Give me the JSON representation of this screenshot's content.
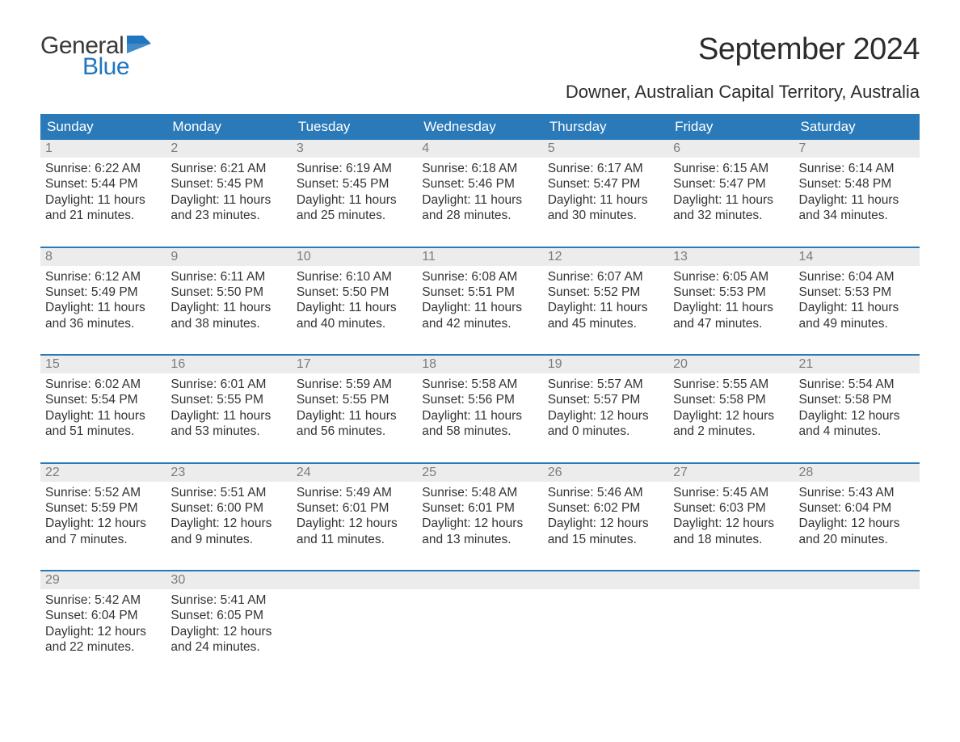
{
  "logo": {
    "text1": "General",
    "text2": "Blue",
    "color1": "#3a3a3a",
    "color2": "#2176c0",
    "flag_color": "#2176c0"
  },
  "title": "September 2024",
  "location": "Downer, Australian Capital Territory, Australia",
  "colors": {
    "header_bg": "#2a7ab9",
    "header_fg": "#ffffff",
    "daynum_bg": "#ececec",
    "daynum_fg": "#7c7c7c",
    "rule": "#2a7ab9",
    "body_text": "#333333",
    "background": "#ffffff"
  },
  "fonts": {
    "title_size": 38,
    "location_size": 22,
    "weekday_size": 17,
    "daynum_size": 16,
    "body_size": 15.5
  },
  "weekdays": [
    "Sunday",
    "Monday",
    "Tuesday",
    "Wednesday",
    "Thursday",
    "Friday",
    "Saturday"
  ],
  "weeks": [
    [
      {
        "n": "1",
        "sr": "Sunrise: 6:22 AM",
        "ss": "Sunset: 5:44 PM",
        "d1": "Daylight: 11 hours",
        "d2": "and 21 minutes."
      },
      {
        "n": "2",
        "sr": "Sunrise: 6:21 AM",
        "ss": "Sunset: 5:45 PM",
        "d1": "Daylight: 11 hours",
        "d2": "and 23 minutes."
      },
      {
        "n": "3",
        "sr": "Sunrise: 6:19 AM",
        "ss": "Sunset: 5:45 PM",
        "d1": "Daylight: 11 hours",
        "d2": "and 25 minutes."
      },
      {
        "n": "4",
        "sr": "Sunrise: 6:18 AM",
        "ss": "Sunset: 5:46 PM",
        "d1": "Daylight: 11 hours",
        "d2": "and 28 minutes."
      },
      {
        "n": "5",
        "sr": "Sunrise: 6:17 AM",
        "ss": "Sunset: 5:47 PM",
        "d1": "Daylight: 11 hours",
        "d2": "and 30 minutes."
      },
      {
        "n": "6",
        "sr": "Sunrise: 6:15 AM",
        "ss": "Sunset: 5:47 PM",
        "d1": "Daylight: 11 hours",
        "d2": "and 32 minutes."
      },
      {
        "n": "7",
        "sr": "Sunrise: 6:14 AM",
        "ss": "Sunset: 5:48 PM",
        "d1": "Daylight: 11 hours",
        "d2": "and 34 minutes."
      }
    ],
    [
      {
        "n": "8",
        "sr": "Sunrise: 6:12 AM",
        "ss": "Sunset: 5:49 PM",
        "d1": "Daylight: 11 hours",
        "d2": "and 36 minutes."
      },
      {
        "n": "9",
        "sr": "Sunrise: 6:11 AM",
        "ss": "Sunset: 5:50 PM",
        "d1": "Daylight: 11 hours",
        "d2": "and 38 minutes."
      },
      {
        "n": "10",
        "sr": "Sunrise: 6:10 AM",
        "ss": "Sunset: 5:50 PM",
        "d1": "Daylight: 11 hours",
        "d2": "and 40 minutes."
      },
      {
        "n": "11",
        "sr": "Sunrise: 6:08 AM",
        "ss": "Sunset: 5:51 PM",
        "d1": "Daylight: 11 hours",
        "d2": "and 42 minutes."
      },
      {
        "n": "12",
        "sr": "Sunrise: 6:07 AM",
        "ss": "Sunset: 5:52 PM",
        "d1": "Daylight: 11 hours",
        "d2": "and 45 minutes."
      },
      {
        "n": "13",
        "sr": "Sunrise: 6:05 AM",
        "ss": "Sunset: 5:53 PM",
        "d1": "Daylight: 11 hours",
        "d2": "and 47 minutes."
      },
      {
        "n": "14",
        "sr": "Sunrise: 6:04 AM",
        "ss": "Sunset: 5:53 PM",
        "d1": "Daylight: 11 hours",
        "d2": "and 49 minutes."
      }
    ],
    [
      {
        "n": "15",
        "sr": "Sunrise: 6:02 AM",
        "ss": "Sunset: 5:54 PM",
        "d1": "Daylight: 11 hours",
        "d2": "and 51 minutes."
      },
      {
        "n": "16",
        "sr": "Sunrise: 6:01 AM",
        "ss": "Sunset: 5:55 PM",
        "d1": "Daylight: 11 hours",
        "d2": "and 53 minutes."
      },
      {
        "n": "17",
        "sr": "Sunrise: 5:59 AM",
        "ss": "Sunset: 5:55 PM",
        "d1": "Daylight: 11 hours",
        "d2": "and 56 minutes."
      },
      {
        "n": "18",
        "sr": "Sunrise: 5:58 AM",
        "ss": "Sunset: 5:56 PM",
        "d1": "Daylight: 11 hours",
        "d2": "and 58 minutes."
      },
      {
        "n": "19",
        "sr": "Sunrise: 5:57 AM",
        "ss": "Sunset: 5:57 PM",
        "d1": "Daylight: 12 hours",
        "d2": "and 0 minutes."
      },
      {
        "n": "20",
        "sr": "Sunrise: 5:55 AM",
        "ss": "Sunset: 5:58 PM",
        "d1": "Daylight: 12 hours",
        "d2": "and 2 minutes."
      },
      {
        "n": "21",
        "sr": "Sunrise: 5:54 AM",
        "ss": "Sunset: 5:58 PM",
        "d1": "Daylight: 12 hours",
        "d2": "and 4 minutes."
      }
    ],
    [
      {
        "n": "22",
        "sr": "Sunrise: 5:52 AM",
        "ss": "Sunset: 5:59 PM",
        "d1": "Daylight: 12 hours",
        "d2": "and 7 minutes."
      },
      {
        "n": "23",
        "sr": "Sunrise: 5:51 AM",
        "ss": "Sunset: 6:00 PM",
        "d1": "Daylight: 12 hours",
        "d2": "and 9 minutes."
      },
      {
        "n": "24",
        "sr": "Sunrise: 5:49 AM",
        "ss": "Sunset: 6:01 PM",
        "d1": "Daylight: 12 hours",
        "d2": "and 11 minutes."
      },
      {
        "n": "25",
        "sr": "Sunrise: 5:48 AM",
        "ss": "Sunset: 6:01 PM",
        "d1": "Daylight: 12 hours",
        "d2": "and 13 minutes."
      },
      {
        "n": "26",
        "sr": "Sunrise: 5:46 AM",
        "ss": "Sunset: 6:02 PM",
        "d1": "Daylight: 12 hours",
        "d2": "and 15 minutes."
      },
      {
        "n": "27",
        "sr": "Sunrise: 5:45 AM",
        "ss": "Sunset: 6:03 PM",
        "d1": "Daylight: 12 hours",
        "d2": "and 18 minutes."
      },
      {
        "n": "28",
        "sr": "Sunrise: 5:43 AM",
        "ss": "Sunset: 6:04 PM",
        "d1": "Daylight: 12 hours",
        "d2": "and 20 minutes."
      }
    ],
    [
      {
        "n": "29",
        "sr": "Sunrise: 5:42 AM",
        "ss": "Sunset: 6:04 PM",
        "d1": "Daylight: 12 hours",
        "d2": "and 22 minutes."
      },
      {
        "n": "30",
        "sr": "Sunrise: 5:41 AM",
        "ss": "Sunset: 6:05 PM",
        "d1": "Daylight: 12 hours",
        "d2": "and 24 minutes."
      },
      null,
      null,
      null,
      null,
      null
    ]
  ]
}
